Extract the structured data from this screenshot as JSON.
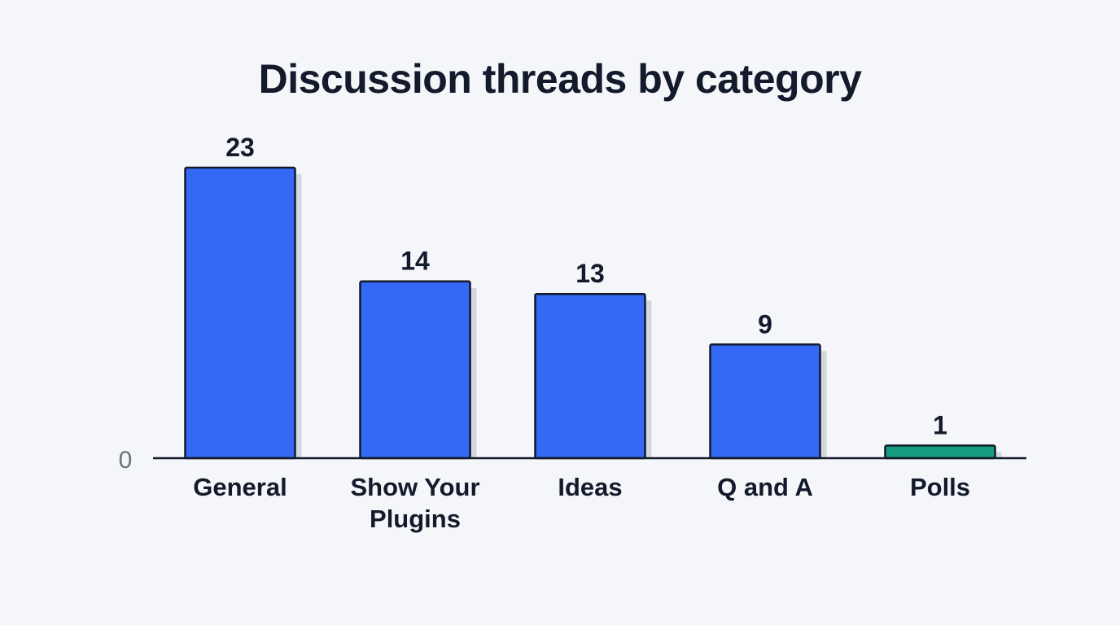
{
  "chart_data": {
    "type": "bar",
    "title": "Discussion threads by category",
    "categories": [
      "General",
      "Show Your Plugins",
      "Ideas",
      "Q and A",
      "Polls"
    ],
    "values": [
      23,
      14,
      13,
      9,
      1
    ],
    "bar_colors": [
      "#3369f5",
      "#3369f5",
      "#3369f5",
      "#3369f5",
      "#159e82"
    ],
    "ylim": [
      0,
      23
    ],
    "y_tick_labels": [
      "0"
    ],
    "grid": false,
    "legend": "none"
  }
}
